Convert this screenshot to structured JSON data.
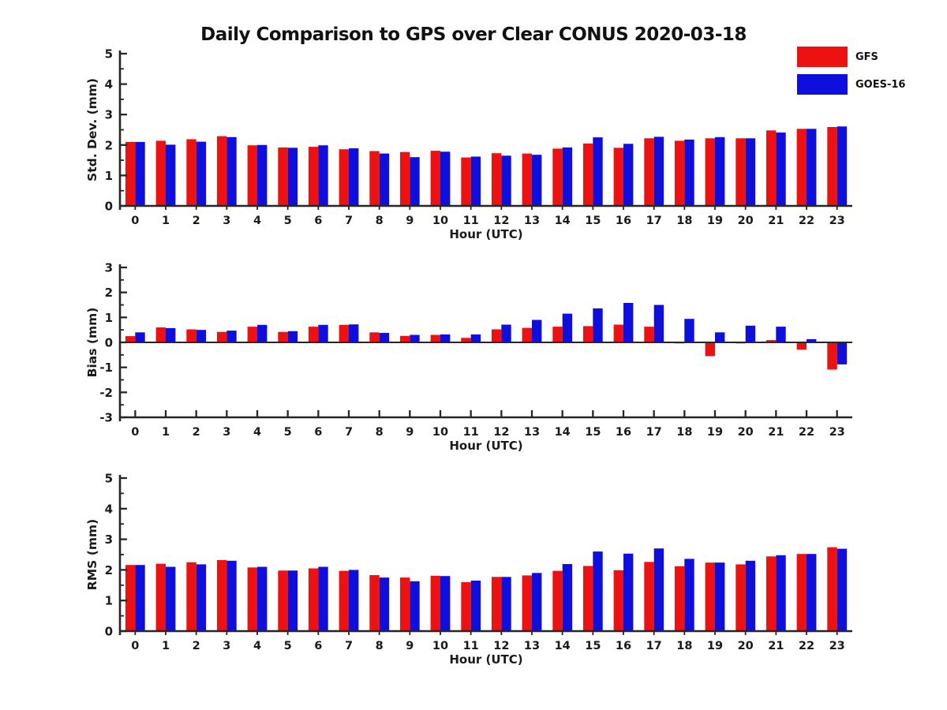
{
  "title": "Daily Comparison to GPS over Clear CONUS 2020-03-18",
  "legend": {
    "items": [
      {
        "label": "GFS",
        "color": "#ee1111"
      },
      {
        "label": "GOES-16",
        "color": "#0f0fdd"
      }
    ]
  },
  "chart_data": [
    {
      "type": "bar",
      "title": "",
      "ylabel": "Std. Dev. (mm)",
      "xlabel": "Hour (UTC)",
      "ylim": [
        0,
        5
      ],
      "yticks": [
        0,
        1,
        2,
        3,
        4,
        5
      ],
      "grid": false,
      "legend_position": "top-right",
      "categories": [
        "0",
        "1",
        "2",
        "3",
        "4",
        "5",
        "6",
        "7",
        "8",
        "9",
        "10",
        "11",
        "12",
        "13",
        "14",
        "15",
        "16",
        "17",
        "18",
        "19",
        "20",
        "21",
        "22",
        "23"
      ],
      "series": [
        {
          "name": "GFS",
          "color": "#ee1111",
          "values": [
            2.1,
            2.14,
            2.19,
            2.29,
            1.99,
            1.92,
            1.94,
            1.86,
            1.8,
            1.77,
            1.81,
            1.59,
            1.73,
            1.72,
            1.88,
            2.05,
            1.91,
            2.22,
            2.14,
            2.22,
            2.22,
            2.48,
            2.53,
            2.59
          ]
        },
        {
          "name": "GOES-16",
          "color": "#0f0fdd",
          "values": [
            2.1,
            2.01,
            2.11,
            2.26,
            2.0,
            1.91,
            1.99,
            1.89,
            1.72,
            1.6,
            1.78,
            1.62,
            1.65,
            1.68,
            1.92,
            2.25,
            2.04,
            2.27,
            2.18,
            2.26,
            2.22,
            2.41,
            2.53,
            2.61
          ]
        }
      ]
    },
    {
      "type": "bar",
      "title": "",
      "ylabel": "Bias (mm)",
      "xlabel": "Hour (UTC)",
      "ylim": [
        -3,
        3
      ],
      "yticks": [
        -3,
        -2,
        -1,
        0,
        1,
        2,
        3
      ],
      "grid": false,
      "categories": [
        "0",
        "1",
        "2",
        "3",
        "4",
        "5",
        "6",
        "7",
        "8",
        "9",
        "10",
        "11",
        "12",
        "13",
        "14",
        "15",
        "16",
        "17",
        "18",
        "19",
        "20",
        "21",
        "22",
        "23"
      ],
      "series": [
        {
          "name": "GFS",
          "color": "#ee1111",
          "values": [
            0.25,
            0.6,
            0.52,
            0.42,
            0.63,
            0.42,
            0.63,
            0.7,
            0.4,
            0.26,
            0.3,
            0.18,
            0.52,
            0.58,
            0.63,
            0.65,
            0.71,
            0.63,
            -0.04,
            -0.55,
            -0.04,
            0.09,
            -0.29,
            -1.09
          ]
        },
        {
          "name": "GOES-16",
          "color": "#0f0fdd",
          "values": [
            0.4,
            0.57,
            0.5,
            0.47,
            0.7,
            0.45,
            0.7,
            0.72,
            0.38,
            0.3,
            0.32,
            0.32,
            0.71,
            0.9,
            1.15,
            1.36,
            1.58,
            1.5,
            0.94,
            0.4,
            0.67,
            0.63,
            0.13,
            -0.88
          ]
        }
      ]
    },
    {
      "type": "bar",
      "title": "",
      "ylabel": "RMS (mm)",
      "xlabel": "Hour (UTC)",
      "ylim": [
        0,
        5
      ],
      "yticks": [
        0,
        1,
        2,
        3,
        4,
        5
      ],
      "grid": false,
      "categories": [
        "0",
        "1",
        "2",
        "3",
        "4",
        "5",
        "6",
        "7",
        "8",
        "9",
        "10",
        "11",
        "12",
        "13",
        "14",
        "15",
        "16",
        "17",
        "18",
        "19",
        "20",
        "21",
        "22",
        "23"
      ],
      "series": [
        {
          "name": "GFS",
          "color": "#ee1111",
          "values": [
            2.16,
            2.2,
            2.25,
            2.32,
            2.08,
            1.98,
            2.05,
            1.97,
            1.83,
            1.75,
            1.81,
            1.6,
            1.77,
            1.82,
            1.97,
            2.13,
            1.99,
            2.26,
            2.12,
            2.24,
            2.18,
            2.44,
            2.52,
            2.74
          ]
        },
        {
          "name": "GOES-16",
          "color": "#0f0fdd",
          "values": [
            2.16,
            2.1,
            2.18,
            2.3,
            2.1,
            1.98,
            2.1,
            2.0,
            1.75,
            1.63,
            1.8,
            1.65,
            1.77,
            1.9,
            2.19,
            2.6,
            2.53,
            2.7,
            2.36,
            2.24,
            2.3,
            2.48,
            2.52,
            2.69
          ]
        }
      ]
    }
  ]
}
